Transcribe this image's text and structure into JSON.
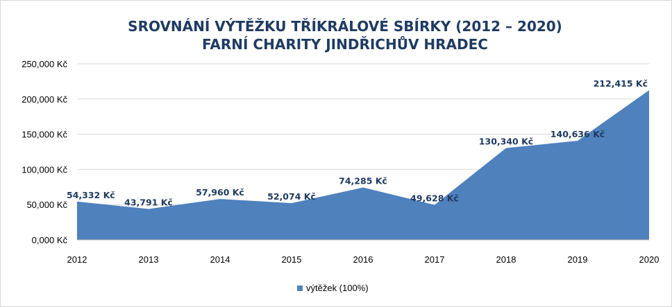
{
  "chart_data": {
    "type": "area",
    "title": [
      "SROVNÁNÍ VÝTĚŽKU TŘÍKRÁLOVÉ SBÍRKY (2012 – 2020)",
      "FARNÍ CHARITY JINDŘICHŮV HRADEC"
    ],
    "categories": [
      "2012",
      "2013",
      "2014",
      "2015",
      "2016",
      "2017",
      "2018",
      "2019",
      "2020"
    ],
    "series": [
      {
        "name": "výtěžek (100%)",
        "values": [
          54332,
          43791,
          57960,
          52074,
          74285,
          49628,
          130340,
          140636,
          212415
        ],
        "labels": [
          "54,332 Kč",
          "43,791 Kč",
          "57,960 Kč",
          "52,074 Kč",
          "74,285 Kč",
          "49,628 Kč",
          "130,340 Kč",
          "140,636 Kč",
          "212,415 Kč"
        ]
      }
    ],
    "ylim": [
      0,
      250000
    ],
    "yticks": [
      {
        "value": 0,
        "label": "0,000 Kč"
      },
      {
        "value": 50000,
        "label": "50,000 Kč"
      },
      {
        "value": 100000,
        "label": "100,000 Kč"
      },
      {
        "value": 150000,
        "label": "150,000 Kč"
      },
      {
        "value": 200000,
        "label": "200,000 Kč"
      },
      {
        "value": 250000,
        "label": "250,000 Kč"
      }
    ],
    "grid": true,
    "legend_position": "bottom",
    "colors": {
      "area": "#4f81bd",
      "grid": "#d9d9d9",
      "title": "#1f3b63",
      "label": "#1f3b63"
    }
  }
}
